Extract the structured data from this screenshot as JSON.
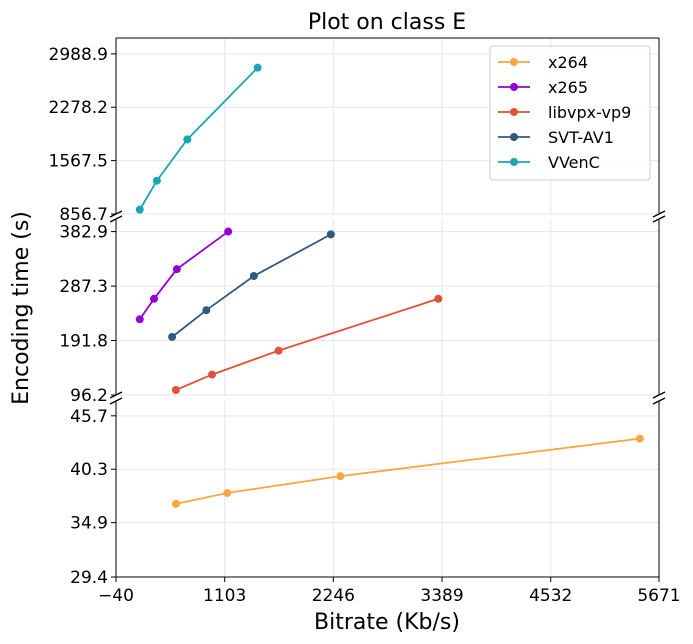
{
  "chart_data": {
    "type": "line",
    "title": "Plot on class E",
    "xlabel": "Bitrate (Kb/s)",
    "ylabel": "Encoding time (s)",
    "xlim": [
      -40,
      5671
    ],
    "x_ticks": [
      "−40",
      "1103",
      "2246",
      "3389",
      "4532",
      "5671"
    ],
    "x_tick_values": [
      -40,
      1103,
      2246,
      3389,
      4532,
      5671
    ],
    "grid": true,
    "legend_position": "top-right",
    "broken_y_axis": true,
    "panels": [
      {
        "name": "top",
        "ylim": [
          856.7,
          3200
        ],
        "y_ticks": [
          "856.7",
          "1567.5",
          "2278.2",
          "2988.9"
        ],
        "y_tick_values": [
          856.7,
          1567.5,
          2278.2,
          2988.9
        ]
      },
      {
        "name": "middle",
        "ylim": [
          96.2,
          405
        ],
        "y_ticks": [
          "96.2",
          "191.8",
          "287.3",
          "382.9"
        ],
        "y_tick_values": [
          96.2,
          191.8,
          287.3,
          382.9
        ]
      },
      {
        "name": "bottom",
        "ylim": [
          29.4,
          47.2
        ],
        "y_ticks": [
          "29.4",
          "34.9",
          "40.3",
          "45.7"
        ],
        "y_tick_values": [
          29.4,
          34.9,
          40.3,
          45.7
        ]
      }
    ],
    "series": [
      {
        "name": "x264",
        "color": "#f5a742",
        "panel": "bottom",
        "x": [
          590,
          1130,
          2320,
          5470
        ],
        "y": [
          36.8,
          37.9,
          39.6,
          43.4
        ]
      },
      {
        "name": "x265",
        "color": "#9400d3",
        "panel": "middle",
        "x": [
          210,
          360,
          600,
          1140
        ],
        "y": [
          229,
          265,
          317,
          383
        ]
      },
      {
        "name": "libvpx-vp9",
        "color": "#e0533a",
        "panel": "middle",
        "x": [
          590,
          970,
          1670,
          3350
        ],
        "y": [
          105,
          132,
          174,
          265
        ]
      },
      {
        "name": "SVT-AV1",
        "color": "#2e5a80",
        "panel": "middle",
        "x": [
          550,
          910,
          1410,
          2220
        ],
        "y": [
          198,
          245,
          305,
          378
        ]
      },
      {
        "name": "VVenC",
        "color": "#17a6b4",
        "panel": "top",
        "x": [
          210,
          390,
          710,
          1450
        ],
        "y": [
          915,
          1300,
          1850,
          2805
        ]
      }
    ]
  }
}
